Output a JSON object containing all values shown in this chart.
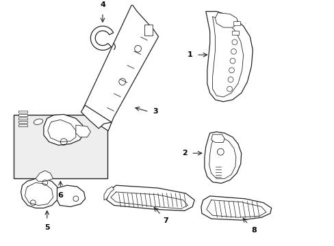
{
  "background_color": "#ffffff",
  "line_color": "#222222",
  "box_fill": "#eeeeee",
  "figsize": [
    4.89,
    3.6
  ],
  "dpi": 100
}
